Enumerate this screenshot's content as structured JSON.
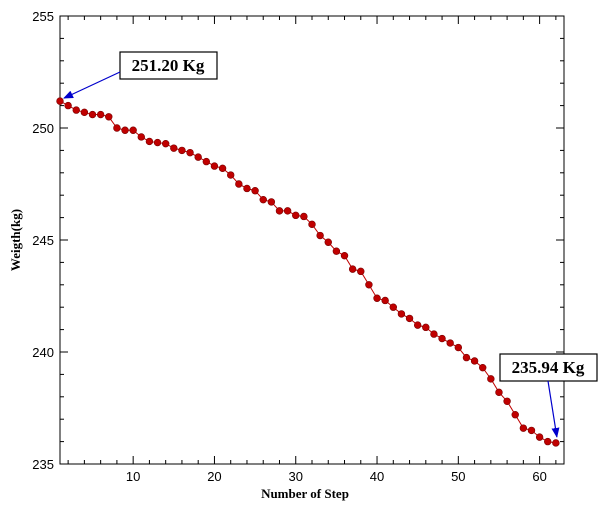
{
  "chart_data": {
    "type": "line",
    "title": "",
    "xlabel": "Number of Step",
    "ylabel": "Weigth(kg)",
    "xlim": [
      1,
      63
    ],
    "ylim": [
      235,
      255
    ],
    "xticks": [
      10,
      20,
      30,
      40,
      50,
      60
    ],
    "yticks": [
      235,
      240,
      245,
      250,
      255
    ],
    "grid": false,
    "legend": "none",
    "colors": {
      "series": "#c00000",
      "annotation_arrow": "#0000cc",
      "axis": "#000000"
    },
    "series": [
      {
        "x": [
          1,
          2,
          3,
          4,
          5,
          6,
          7,
          8,
          9,
          10,
          11,
          12,
          13,
          14,
          15,
          16,
          17,
          18,
          19,
          20,
          21,
          22,
          23,
          24,
          25,
          26,
          27,
          28,
          29,
          30,
          31,
          32,
          33,
          34,
          35,
          36,
          37,
          38,
          39,
          40,
          41,
          42,
          43,
          44,
          45,
          46,
          47,
          48,
          49,
          50,
          51,
          52,
          53,
          54,
          55,
          56,
          57,
          58,
          59,
          60,
          61,
          62
        ],
        "values": [
          251.2,
          251.0,
          250.8,
          250.7,
          250.6,
          250.6,
          250.5,
          250.0,
          249.9,
          249.9,
          249.6,
          249.4,
          249.35,
          249.3,
          249.1,
          249.0,
          248.9,
          248.7,
          248.5,
          248.3,
          248.2,
          247.9,
          247.5,
          247.3,
          247.2,
          246.8,
          246.7,
          246.3,
          246.3,
          246.1,
          246.05,
          245.7,
          245.2,
          244.9,
          244.5,
          244.3,
          243.7,
          243.6,
          243.0,
          242.4,
          242.3,
          242.0,
          241.7,
          241.5,
          241.2,
          241.1,
          240.8,
          240.6,
          240.4,
          240.2,
          239.75,
          239.6,
          239.3,
          238.8,
          238.2,
          237.8,
          237.2,
          236.6,
          236.5,
          236.2,
          236.0,
          235.94
        ]
      }
    ],
    "annotations": [
      {
        "text": "251.20 Kg",
        "x": 1,
        "y": 251.2
      },
      {
        "text": "235.94 Kg",
        "x": 62,
        "y": 235.94
      }
    ]
  }
}
